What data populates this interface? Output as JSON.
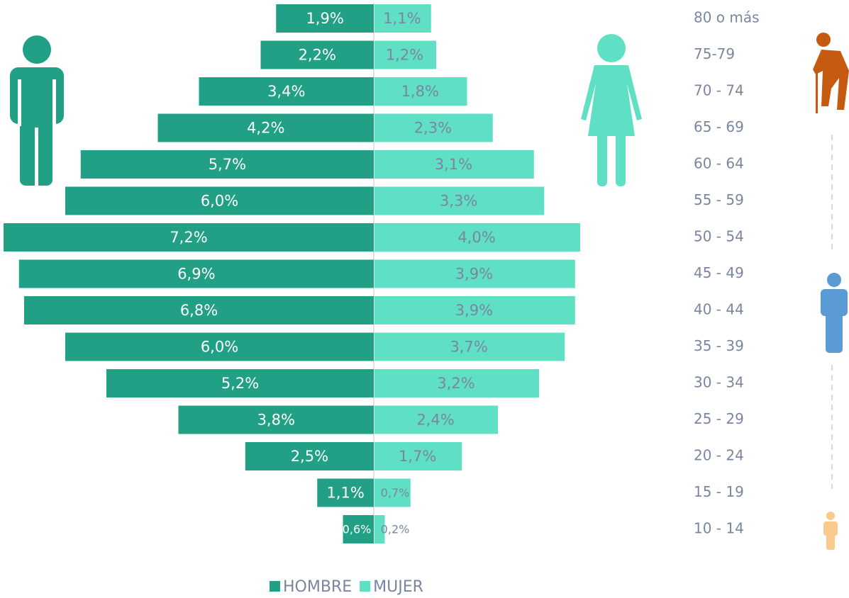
{
  "chart_data": {
    "type": "bar",
    "categories": [
      "80 o más",
      "75-79",
      "70 - 74",
      "65 - 69",
      "60 - 64",
      "55 - 59",
      "50 - 54",
      "45 - 49",
      "40 - 44",
      "35 - 39",
      "30 - 34",
      "25 - 29",
      "20 - 24",
      "15 - 19",
      "10 - 14"
    ],
    "series": [
      {
        "name": "HOMBRE",
        "color": "#21a085",
        "values": [
          1.9,
          2.2,
          3.4,
          4.2,
          5.7,
          6.0,
          7.2,
          6.9,
          6.8,
          6.0,
          5.2,
          3.8,
          2.5,
          1.1,
          0.6
        ],
        "value_labels": [
          "1,9%",
          "2,2%",
          "3,4%",
          "4,2%",
          "5,7%",
          "6,0%",
          "7,2%",
          "6,9%",
          "6,8%",
          "6,0%",
          "5,2%",
          "3,8%",
          "2,5%",
          "1,1%",
          "0,6%"
        ]
      },
      {
        "name": "MUJER",
        "color": "#5fe0c5",
        "values": [
          1.1,
          1.2,
          1.8,
          2.3,
          3.1,
          3.3,
          4.0,
          3.9,
          3.9,
          3.7,
          3.2,
          2.4,
          1.7,
          0.7,
          0.2
        ],
        "value_labels": [
          "1,1%",
          "1,2%",
          "1,8%",
          "2,3%",
          "3,1%",
          "3,3%",
          "4,0%",
          "3,9%",
          "3,9%",
          "3,7%",
          "3,2%",
          "2,4%",
          "1,7%",
          "0,7%",
          "0,2%"
        ]
      }
    ]
  }
}
